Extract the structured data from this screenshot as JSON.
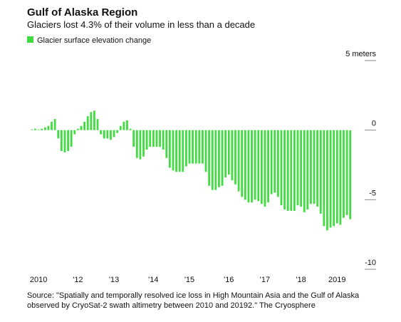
{
  "chart_data": {
    "type": "bar",
    "title": "Gulf of Alaska Region",
    "subtitle": "Glaciers lost 4.3% of their volume in less than a decade",
    "source": [
      "Source: \"Spatially and temporally resolved ice loss in High Mountain Asia and the Gulf of Alaska",
      "observed by CryoSat-2 swath altimetry between 2010 and 20192.\" The Cryosphere"
    ],
    "series": [
      {
        "name": "Glacier surface elevation change",
        "color": "#3fdc3f",
        "values": [
          0,
          0.05,
          0.1,
          0.05,
          0.1,
          0.2,
          0.3,
          0.6,
          0.8,
          -0.6,
          -1.5,
          -1.6,
          -1.5,
          -1.2,
          -0.3,
          0.1,
          0.3,
          0.6,
          1.0,
          1.3,
          1.4,
          0.8,
          -0.3,
          -0.6,
          -0.6,
          -0.7,
          -0.5,
          -0.2,
          0.3,
          0.6,
          0.7,
          0.1,
          -1.2,
          -2.0,
          -2.1,
          -1.9,
          -1.4,
          -1.2,
          -1.2,
          -1.2,
          -1.2,
          -1.4,
          -2.0,
          -2.7,
          -2.9,
          -3.0,
          -3.0,
          -3.0,
          -2.6,
          -2.4,
          -2.4,
          -2.4,
          -2.4,
          -2.4,
          -3.0,
          -4.0,
          -4.3,
          -4.3,
          -4.1,
          -4.0,
          -3.4,
          -3.2,
          -3.6,
          -3.9,
          -4.4,
          -4.8,
          -5.0,
          -5.2,
          -5.2,
          -5.0,
          -5.1,
          -5.3,
          -5.5,
          -5.2,
          -4.6,
          -4.5,
          -4.8,
          -5.4,
          -5.7,
          -5.8,
          -5.8,
          -5.8,
          -5.4,
          -5.5,
          -5.9,
          -5.7,
          -5.3,
          -5.3,
          -5.5,
          -6.0,
          -6.9,
          -7.2,
          -7.0,
          -6.9,
          -6.7,
          -6.8,
          -6.3,
          -6.1,
          -6.4
        ]
      }
    ],
    "categories": [
      null,
      null,
      null,
      "2010",
      null,
      null,
      null,
      null,
      null,
      null,
      null,
      null,
      null,
      null,
      null,
      "'12",
      null,
      null,
      null,
      null,
      null,
      null,
      null,
      null,
      null,
      null,
      "'13",
      null,
      null,
      null,
      null,
      null,
      null,
      null,
      null,
      null,
      null,
      null,
      "'14",
      null,
      null,
      null,
      null,
      null,
      null,
      null,
      null,
      null,
      null,
      "'15",
      null,
      null,
      null,
      null,
      null,
      null,
      null,
      null,
      null,
      null,
      null,
      "'16",
      null,
      null,
      null,
      null,
      null,
      null,
      null,
      null,
      null,
      null,
      "'17",
      null,
      null,
      null,
      null,
      null,
      null,
      null,
      null,
      null,
      null,
      "'18",
      null,
      null,
      null,
      null,
      null,
      null,
      null,
      null,
      null,
      null,
      "2019",
      null,
      null,
      null,
      null
    ],
    "ylim": [
      -10,
      5
    ],
    "yticks": [
      {
        "value": 5,
        "label": "5 meters"
      },
      0,
      -5,
      -10
    ]
  }
}
